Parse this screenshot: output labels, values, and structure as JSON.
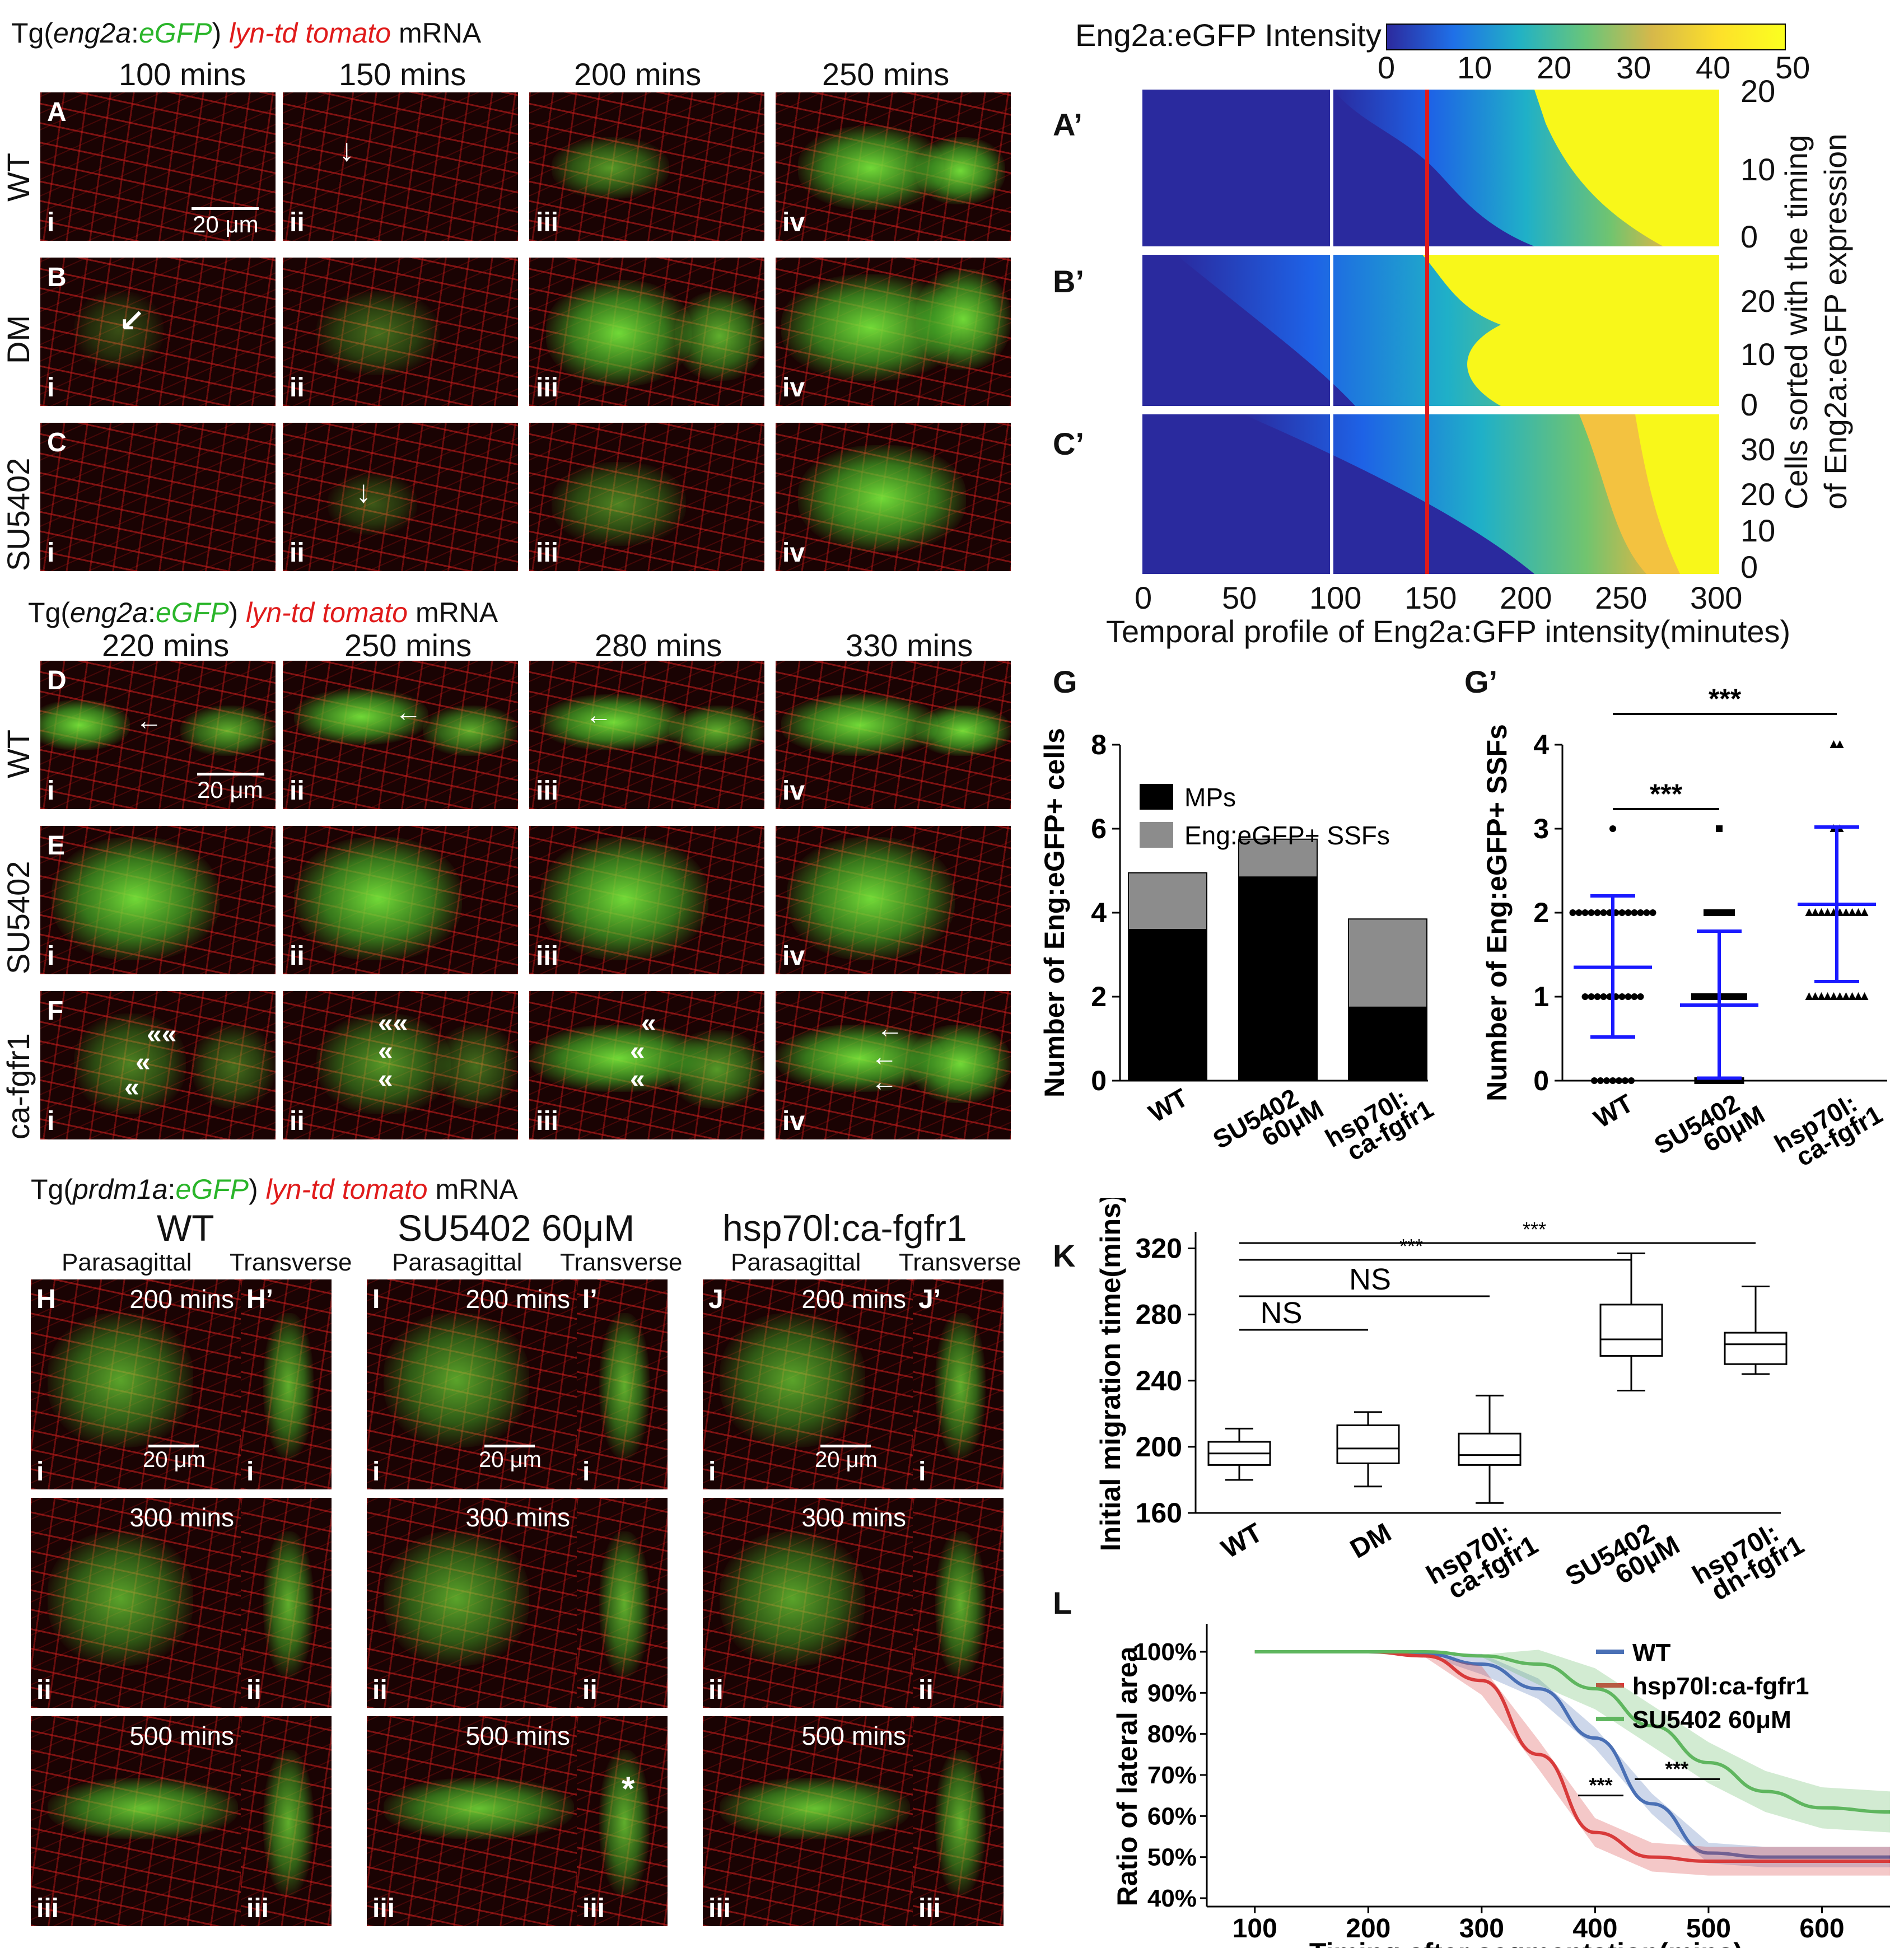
{
  "panelA_header": {
    "prefix": "Tg(",
    "gene": "eng2a",
    "colon": ":",
    "egfp": "eGFP",
    "suffix": ") ",
    "lyn": "lyn-td tomato",
    "mrna": " mRNA"
  },
  "timesA": [
    "100 mins",
    "150 mins",
    "200 mins",
    "250 mins"
  ],
  "rowsA": [
    {
      "letter": "A",
      "cond": "WT"
    },
    {
      "letter": "B",
      "cond": "DM"
    },
    {
      "letter": "C",
      "cond": "SU5402"
    }
  ],
  "roman": [
    "i",
    "ii",
    "iii",
    "iv"
  ],
  "scalebar": "20 μm",
  "colorbar": {
    "title": "Eng2a:eGFP Intensity",
    "ticks": [
      "0",
      "10",
      "20",
      "30",
      "40",
      "50"
    ]
  },
  "heatmap": {
    "labels": [
      "A’",
      "B’",
      "C’"
    ],
    "yticks_A": [
      "20",
      "10",
      "0"
    ],
    "yticks_B": [
      "20",
      "10",
      "0"
    ],
    "yticks_C": [
      "30",
      "20",
      "10",
      "0"
    ],
    "ylabel_line1": "Cells sorted with the timing",
    "ylabel_line2": "of Eng2a:eGFP expression",
    "xticks": [
      "0",
      "50",
      "100",
      "150",
      "200",
      "250",
      "300"
    ],
    "xlabel": "Temporal profile of Eng2a:GFP intensity(minutes)"
  },
  "panelD_header": {
    "prefix": "Tg(",
    "gene": "eng2a",
    "colon": ":",
    "egfp": "eGFP",
    "suffix": ") ",
    "lyn": "lyn-td tomato",
    "mrna": " mRNA"
  },
  "timesD": [
    "220 mins",
    "250 mins",
    "280 mins",
    "330 mins"
  ],
  "rowsD": [
    {
      "letter": "D",
      "cond": "WT"
    },
    {
      "letter": "E",
      "cond": "SU5402"
    },
    {
      "letter": "F",
      "cond": "ca-fgfr1"
    }
  ],
  "chart_data": [
    {
      "type": "bar",
      "panel": "G",
      "categories": [
        "WT",
        "SU5402 60μM",
        "hsp70l: ca-fgfr1"
      ],
      "series": [
        {
          "name": "MPs",
          "values": [
            3.6,
            4.85,
            1.75
          ],
          "color": "#000000"
        },
        {
          "name": "Eng:eGFP+ SSFs",
          "values": [
            1.35,
            0.9,
            2.1
          ],
          "color": "#8c8c8c"
        }
      ],
      "ylabel": "Number of Eng:eGFP+ cells",
      "ylim": [
        0,
        8
      ],
      "yticks": [
        "0",
        "2",
        "4",
        "6",
        "8"
      ]
    },
    {
      "type": "scatter",
      "panel": "G’",
      "categories": [
        "WT",
        "SU5402 60μM",
        "hsp70l: ca-fgfr1"
      ],
      "means": [
        1.35,
        0.9,
        2.1
      ],
      "sd_low": [
        0.52,
        0.03,
        1.18
      ],
      "sd_high": [
        2.2,
        1.78,
        3.02
      ],
      "ylabel": "Number of Eng:eGFP+ SSFs",
      "ylim": [
        0,
        4
      ],
      "yticks": [
        "0",
        "1",
        "2",
        "3",
        "4"
      ],
      "sig": [
        "***",
        "***"
      ]
    },
    {
      "type": "box",
      "panel": "K",
      "categories": [
        "WT",
        "DM",
        "hsp70l: ca-fgfr1",
        "SU5402 60μM",
        "hsp70l: dn-fgfr1"
      ],
      "boxes": [
        {
          "min": 180,
          "q1": 189,
          "median": 196,
          "q3": 203,
          "max": 211
        },
        {
          "min": 176,
          "q1": 190,
          "median": 199,
          "q3": 213,
          "max": 221
        },
        {
          "min": 166,
          "q1": 189,
          "median": 195,
          "q3": 208,
          "max": 231
        },
        {
          "min": 234,
          "q1": 255,
          "median": 265,
          "q3": 286,
          "max": 317
        },
        {
          "min": 244,
          "q1": 250,
          "median": 262,
          "q3": 269,
          "max": 297
        }
      ],
      "ylabel": "Initial migration time(mins)",
      "ylim": [
        160,
        330
      ],
      "yticks": [
        "160",
        "200",
        "240",
        "280",
        "320"
      ],
      "sig": [
        "NS",
        "NS",
        "***",
        "***"
      ]
    },
    {
      "type": "line",
      "panel": "L",
      "x": [
        100,
        200,
        250,
        300,
        350,
        400,
        450,
        500,
        550,
        600,
        660
      ],
      "series": [
        {
          "name": "WT",
          "color": "#4a70b5",
          "values": [
            100,
            100,
            99.5,
            97,
            91,
            79,
            63,
            51,
            50,
            50,
            50
          ]
        },
        {
          "name": "hsp70l:ca-fgfr1",
          "color": "#d83a3a",
          "values": [
            100,
            100,
            99,
            93,
            75,
            56,
            50,
            49,
            49,
            49,
            49
          ]
        },
        {
          "name": "SU5402 60μM",
          "color": "#5fb65f",
          "values": [
            100,
            100,
            100,
            99,
            97,
            91,
            82,
            73,
            66,
            62,
            61
          ]
        }
      ],
      "ylabel": "Ratio of lateral area",
      "xlabel": "Timing after segmentation(mins)",
      "xticks": [
        "100",
        "200",
        "300",
        "400",
        "500",
        "600"
      ],
      "yticks": [
        "100%",
        "90%",
        "80%",
        "70%",
        "60%",
        "50%",
        "40%"
      ],
      "ylim": [
        40,
        100
      ],
      "xlim": [
        70,
        660
      ],
      "sig": [
        "***",
        "***"
      ]
    }
  ],
  "panelH_header": {
    "prefix": "Tg(",
    "gene": "prdm1a",
    "colon": ":",
    "egfp": "eGFP",
    "suffix": ") ",
    "lyn": "lyn-td tomato",
    "mrna": " mRNA"
  },
  "groupsH": [
    {
      "title": "WT",
      "sub1": "Parasagittal",
      "sub2": "Transverse",
      "l1": "H",
      "l2": "H’"
    },
    {
      "title": "SU5402 60μM",
      "sub1": "Parasagittal",
      "sub2": "Transverse",
      "l1": "I",
      "l2": "I’"
    },
    {
      "title": "hsp70l:ca-fgfr1",
      "sub1": "Parasagittal",
      "sub2": "Transverse",
      "l1": "J",
      "l2": "J’"
    }
  ],
  "timesH": [
    "200 mins",
    "300 mins",
    "500 mins"
  ],
  "letters": {
    "G": "G",
    "Gp": "G’",
    "K": "K",
    "L": "L"
  },
  "glegend": [
    "MPs",
    "Eng:eGFP+ SSFs"
  ],
  "gcats": [
    "WT",
    "SU5402",
    "60μM",
    "hsp70l:",
    "ca-fgfr1"
  ],
  "kcats": [
    "WT",
    "DM",
    "hsp70l:",
    "ca-fgfr1",
    "SU5402",
    "60μM",
    "hsp70l:",
    "dn-fgfr1"
  ],
  "star": "*"
}
